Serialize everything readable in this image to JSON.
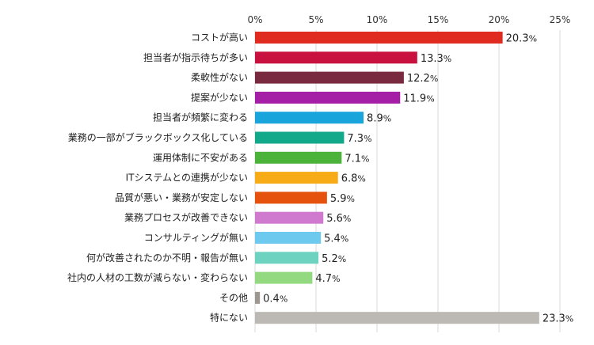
{
  "chart_data": {
    "type": "bar",
    "orientation": "horizontal",
    "xlim": [
      0,
      25
    ],
    "x_ticks": [
      0,
      5,
      10,
      15,
      20,
      25
    ],
    "x_tick_labels": [
      "0%",
      "5%",
      "10%",
      "15%",
      "20%",
      "25%"
    ],
    "grid": true,
    "legend": "none",
    "categories": [
      "コストが高い",
      "担当者が指示待ちが多い",
      "柔軟性がない",
      "提案が少ない",
      "担当者が頻繁に変わる",
      "業務の一部がブラックボックス化している",
      "運用体制に不安がある",
      "ITシステムとの連携が少ない",
      "品質が悪い・業務が安定しない",
      "業務プロセスが改善できない",
      "コンサルティングが無い",
      "何が改善されたのか不明・報告が無い",
      "社内の人材の工数が減らない・変わらない",
      "その他",
      "特にない"
    ],
    "values": [
      20.3,
      13.3,
      12.2,
      11.9,
      8.9,
      7.3,
      7.1,
      6.8,
      5.9,
      5.6,
      5.4,
      5.2,
      4.7,
      0.4,
      23.3
    ],
    "value_labels": [
      "20.3",
      "13.3",
      "12.2",
      "11.9",
      "8.9",
      "7.3",
      "7.1",
      "6.8",
      "5.9",
      "5.6",
      "5.4",
      "5.2",
      "4.7",
      "0.4",
      "23.3"
    ],
    "value_suffix": "%",
    "colors": [
      "#e02b20",
      "#c8113f",
      "#7a2a3e",
      "#a41fa6",
      "#19a5dc",
      "#12a88a",
      "#4cb33a",
      "#f6ab17",
      "#e4520e",
      "#cf79cf",
      "#6ec9ef",
      "#6dd2bf",
      "#93d97f",
      "#9d9792",
      "#bcb8b3"
    ]
  }
}
